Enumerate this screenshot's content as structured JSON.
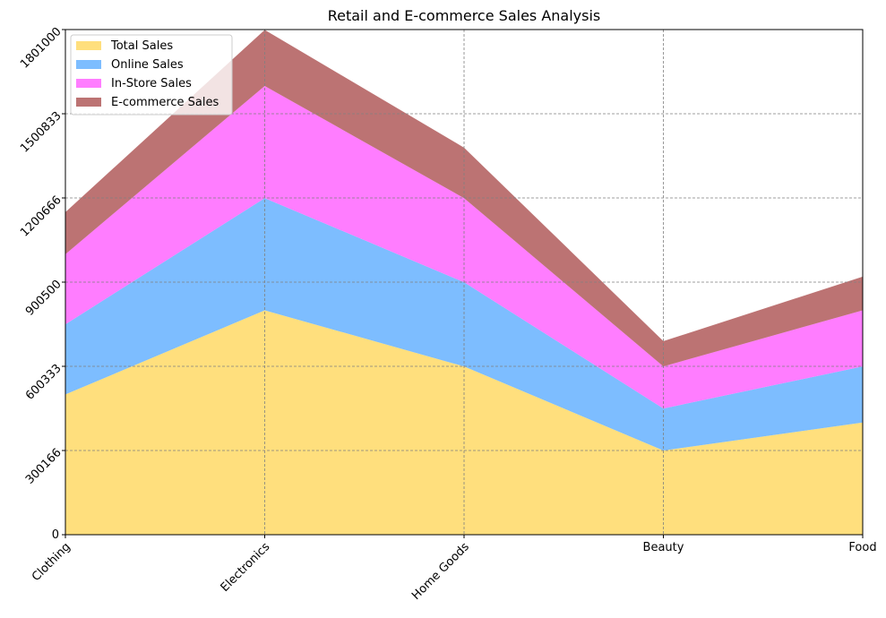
{
  "chart_data": {
    "type": "area",
    "stacked": true,
    "title": "Retail and E-commerce Sales Analysis",
    "xlabel": "",
    "ylabel": "",
    "categories": [
      "Clothing",
      "Electronics",
      "Home Goods",
      "Beauty",
      "Food"
    ],
    "yticks": [
      0,
      300166,
      600333,
      900500,
      1200666,
      1500833,
      1801000
    ],
    "ylim": [
      0,
      1801000
    ],
    "grid": true,
    "legend_position": "top-left",
    "series": [
      {
        "name": "Total Sales",
        "values": [
          500000,
          800000,
          600000,
          300000,
          400000
        ],
        "color": "#FFD966"
      },
      {
        "name": "Online Sales",
        "values": [
          250000,
          400000,
          300000,
          150000,
          200000
        ],
        "color": "#66B2FF"
      },
      {
        "name": "In-Store Sales",
        "values": [
          250000,
          400000,
          300000,
          150000,
          200000
        ],
        "color": "#FF66FF"
      },
      {
        "name": "E-commerce Sales",
        "values": [
          150000,
          200000,
          180000,
          90000,
          120000
        ],
        "color": "#B05A5A"
      }
    ]
  }
}
